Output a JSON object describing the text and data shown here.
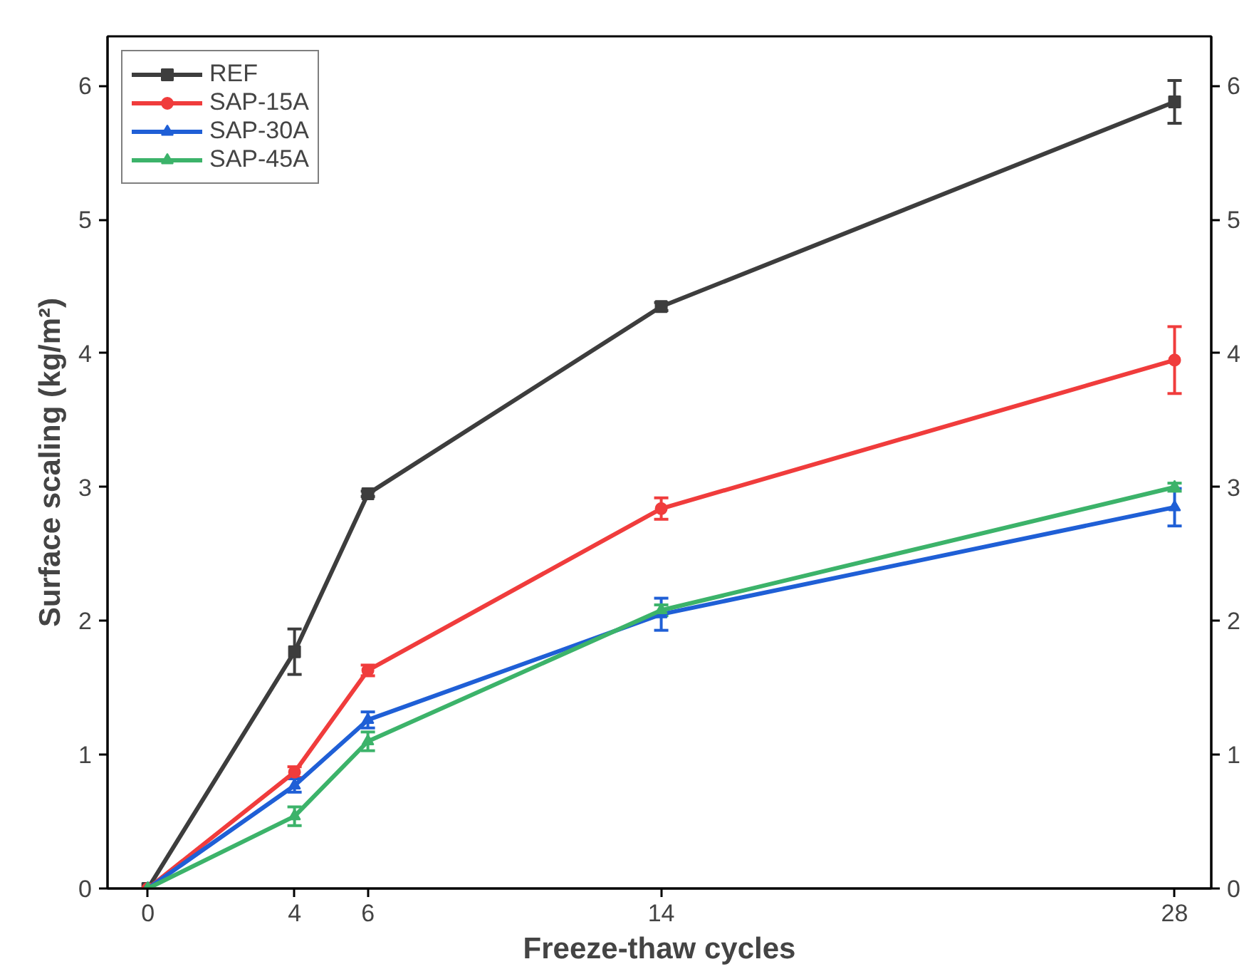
{
  "chart_data": {
    "type": "line",
    "xlabel": "Freeze-thaw cycles",
    "ylabel": "Surface scaling (kg/m²)",
    "x": [
      0,
      4,
      6,
      14,
      28
    ],
    "xlim": [
      -1.1,
      29
    ],
    "xticks": [
      0,
      4,
      6,
      14,
      28
    ],
    "ylim": [
      0,
      6.37
    ],
    "yticks": [
      0,
      1,
      2,
      3,
      4,
      5,
      6
    ],
    "y2lim": [
      0,
      6.37
    ],
    "y2ticks": [
      0,
      1,
      2,
      3,
      4,
      5,
      6
    ],
    "grid": false,
    "legend": "top left",
    "line_style": "solid",
    "series": [
      {
        "name": "REF",
        "color": "#3d3d3d",
        "marker": "square",
        "values": [
          0,
          1.77,
          2.95,
          4.35,
          5.88
        ],
        "errors": [
          null,
          0.17,
          0.02,
          0.03,
          0.16
        ]
      },
      {
        "name": "SAP-15A",
        "color": "#f03c3c",
        "marker": "circle",
        "values": [
          0,
          0.87,
          1.63,
          2.84,
          3.95
        ],
        "errors": [
          null,
          0.04,
          0.04,
          0.08,
          0.25
        ]
      },
      {
        "name": "SAP-30A",
        "color": "#1f5fd6",
        "marker": "triangle",
        "values": [
          0,
          0.77,
          1.26,
          2.05,
          2.85
        ],
        "errors": [
          null,
          0.05,
          0.06,
          0.12,
          0.14
        ]
      },
      {
        "name": "SAP-45A",
        "color": "#3cb36a",
        "marker": "triangle",
        "values": [
          0,
          0.54,
          1.1,
          2.08,
          3.0
        ],
        "errors": [
          null,
          0.07,
          0.07,
          0.04,
          0.03
        ]
      }
    ]
  }
}
